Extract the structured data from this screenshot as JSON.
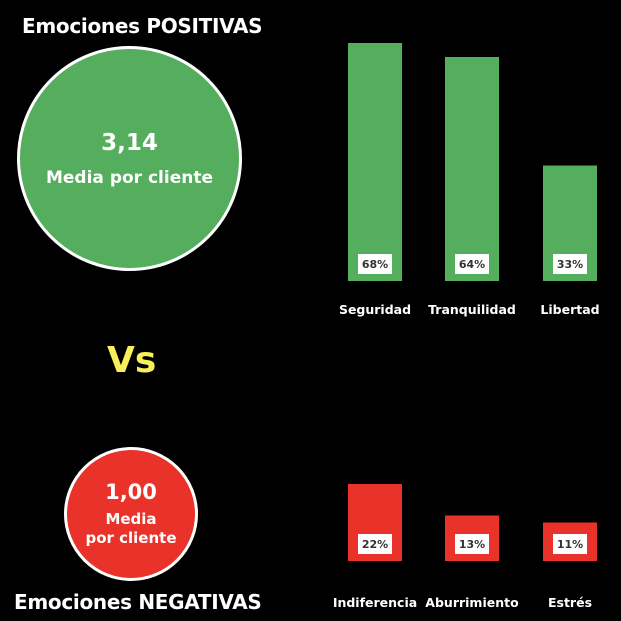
{
  "positive": {
    "title": "Emociones POSITIVAS",
    "mean_value": "3,14",
    "mean_label": "Media por cliente",
    "color": "#55ad5e"
  },
  "negative": {
    "title": "Emociones NEGATIVAS",
    "mean_value": "1,00",
    "mean_label_line1": "Media",
    "mean_label_line2": "por cliente",
    "color": "#e8322a"
  },
  "vs_label": "Vs",
  "vs_color": "#f7f05a",
  "chart_data": [
    {
      "type": "bar",
      "title": "",
      "categories": [
        "Seguridad",
        "Tranquilidad",
        "Libertad"
      ],
      "values": [
        68,
        64,
        33
      ],
      "data_labels": [
        "68%",
        "64%",
        "33%"
      ],
      "ylim": [
        0,
        68
      ],
      "color": "#55ad5e",
      "grid": false
    },
    {
      "type": "bar",
      "title": "",
      "categories": [
        "Indiferencia",
        "Aburrimiento",
        "Estrés"
      ],
      "values": [
        22,
        13,
        11
      ],
      "data_labels": [
        "22%",
        "13%",
        "11%"
      ],
      "ylim": [
        0,
        68
      ],
      "color": "#e8322a",
      "grid": false
    }
  ]
}
